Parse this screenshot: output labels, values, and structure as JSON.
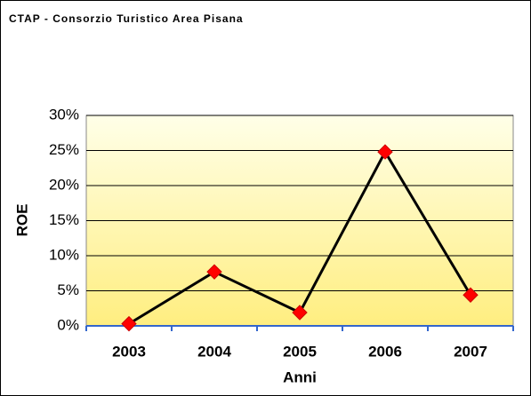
{
  "chart_data": {
    "type": "line",
    "title": "CTAP - Consorzio Turistico Area Pisana",
    "x_label": "Anni",
    "y_label": "ROE",
    "categories": [
      "2003",
      "2004",
      "2005",
      "2006",
      "2007"
    ],
    "series": [
      {
        "name": "ROE",
        "color": "#000000",
        "marker_color": "#ff0000",
        "values": [
          0.3,
          7.7,
          1.9,
          24.8,
          4.4
        ]
      }
    ],
    "ylim": [
      0,
      30
    ],
    "yticks": [
      {
        "value": 0,
        "label": "0%"
      },
      {
        "value": 5,
        "label": "5%"
      },
      {
        "value": 10,
        "label": "10%"
      },
      {
        "value": 15,
        "label": "15%"
      },
      {
        "value": 20,
        "label": "20%"
      },
      {
        "value": 25,
        "label": "25%"
      },
      {
        "value": 30,
        "label": "30%"
      }
    ],
    "grid": true
  }
}
